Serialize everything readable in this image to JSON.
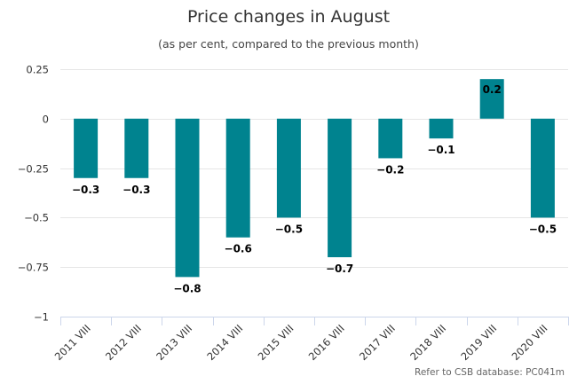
{
  "chart_data": {
    "type": "bar",
    "title": "Price changes in August",
    "subtitle": "(as per cent, compared to the previous month)",
    "categories": [
      "2011 VIII",
      "2012 VIII",
      "2013 VIII",
      "2014 VIII",
      "2015 VIII",
      "2016 VIII",
      "2017 VIII",
      "2018 VIII",
      "2019 VIII",
      "2020 VIII"
    ],
    "values": [
      -0.3,
      -0.3,
      -0.8,
      -0.6,
      -0.5,
      -0.7,
      -0.2,
      -0.1,
      0.2,
      -0.5
    ],
    "data_labels": [
      "−0.3",
      "−0.3",
      "−0.8",
      "−0.6",
      "−0.5",
      "−0.7",
      "−0.2",
      "−0.1",
      "0.2",
      "−0.5"
    ],
    "ylim": [
      -1,
      0.25
    ],
    "yticks": [
      0.25,
      0,
      -0.25,
      -0.5,
      -0.75,
      -1
    ],
    "ytick_labels": [
      "0.25",
      "0",
      "−0.25",
      "−0.5",
      "−0.75",
      "−1"
    ],
    "xlabel": "",
    "ylabel": "",
    "grid": true,
    "bar_color": "#00838f",
    "credit": "Refer to CSB database: PC041m"
  }
}
